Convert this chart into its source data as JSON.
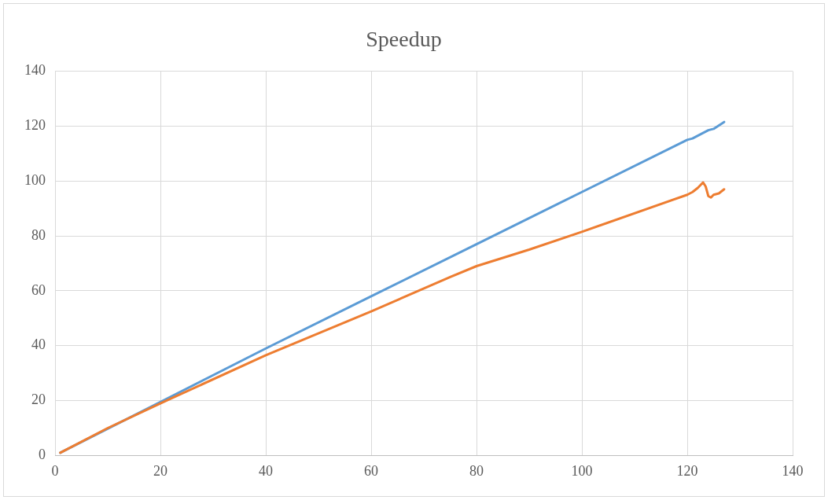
{
  "chart_data": {
    "type": "line",
    "title": "Speedup",
    "xlim": [
      0,
      140
    ],
    "xticks": [
      0,
      20,
      40,
      60,
      80,
      100,
      120,
      140
    ],
    "ylim": [
      0,
      140
    ],
    "yticks": [
      0,
      20,
      40,
      60,
      80,
      100,
      120,
      140
    ],
    "grid": true,
    "marker": "none",
    "line_style": "solid",
    "series": [
      {
        "color": "#5b9bd5",
        "x": [
          1,
          20,
          40,
          60,
          80,
          100,
          120,
          121,
          122,
          123,
          124,
          125,
          127
        ],
        "values": [
          1,
          19.5,
          39,
          58,
          77,
          96,
          115,
          115.5,
          116.5,
          117.5,
          118.5,
          119,
          121.5
        ]
      },
      {
        "color": "#ed7d31",
        "x": [
          1,
          10,
          20,
          40,
          60,
          75,
          80,
          90,
          100,
          120,
          121,
          122,
          123,
          123.5,
          124,
          124.5,
          125,
          126,
          127
        ],
        "values": [
          1,
          10,
          19,
          36.5,
          52.5,
          65,
          69,
          75,
          81.5,
          95,
          96,
          97.5,
          99.5,
          98,
          94.5,
          94,
          95,
          95.5,
          97
        ]
      }
    ]
  }
}
